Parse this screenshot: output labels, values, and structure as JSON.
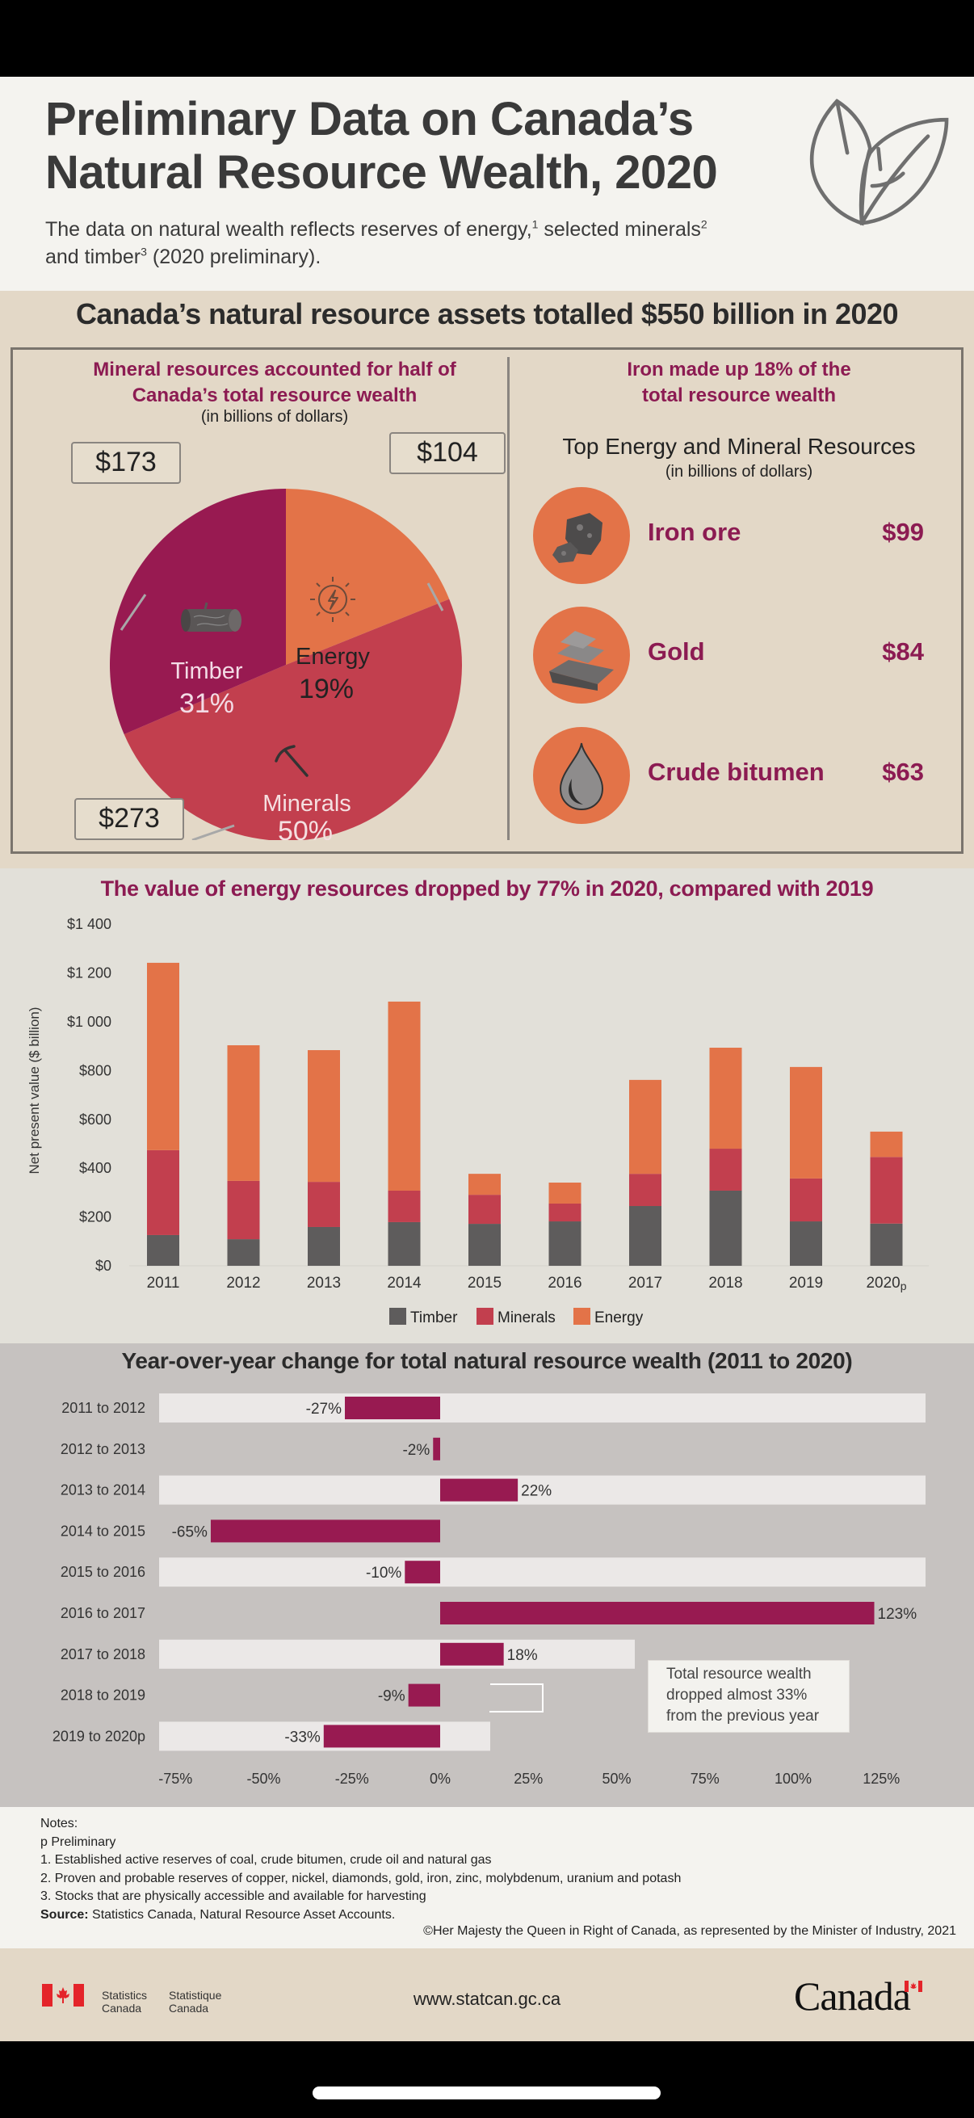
{
  "header": {
    "title_line1": "Preliminary Data on Canada’s",
    "title_line2": "Natural Resource Wealth, 2020",
    "subtitle_part1": "The data on natural wealth reflects reserves of energy,",
    "subtitle_sup1": "1",
    "subtitle_part2": " selected minerals",
    "subtitle_sup2": "2",
    "subtitle_part3": " and timber",
    "subtitle_sup3": "3",
    "subtitle_part4": " (2020 preliminary).",
    "icon": "leaves-icon"
  },
  "assets": {
    "heading": "Canada’s natural resource assets totalled $550 billion in 2020",
    "pie_heading_line1": "Mineral resources accounted for half of",
    "pie_heading_line2": "Canada’s total resource wealth",
    "pie_sub": "(in billions of dollars)",
    "top_heading_line1": "Iron made up 18% of the",
    "top_heading_line2": "total resource wealth",
    "top_title": "Top Energy and Mineral Resources",
    "top_sub": "(in billions of dollars)",
    "top_resources": [
      {
        "name": "Iron ore",
        "value": "$99",
        "icon": "iron-ore-icon"
      },
      {
        "name": "Gold",
        "value": "$84",
        "icon": "gold-bars-icon"
      },
      {
        "name": "Crude bitumen",
        "value": "$63",
        "icon": "oil-drop-icon"
      }
    ]
  },
  "colors": {
    "timber": "#981a51",
    "minerals": "#c23f4e",
    "energy": "#e37348",
    "timber_bar": "#5e5c5c",
    "accent": "#8c1b52"
  },
  "chart_data": [
    {
      "type": "pie",
      "title": "Mineral resources accounted for half of Canada’s total resource wealth",
      "subtitle": "(in billions of dollars)",
      "slices": [
        {
          "label": "Energy",
          "percent": "19%",
          "value": 104,
          "value_label": "$104",
          "icon": "energy-icon"
        },
        {
          "label": "Minerals",
          "percent": "50%",
          "value": 273,
          "value_label": "$273",
          "icon": "pickaxe-icon"
        },
        {
          "label": "Timber",
          "percent": "31%",
          "value": 173,
          "value_label": "$173",
          "icon": "log-icon"
        }
      ]
    },
    {
      "type": "bar",
      "stacked": true,
      "title": "The value of energy resources dropped by 77% in 2020, compared with 2019",
      "xlabel": "",
      "ylabel": "Net present value ($ billion)",
      "ylim": [
        0,
        1400
      ],
      "yticks": [
        0,
        200,
        400,
        600,
        800,
        1000,
        1200,
        1400
      ],
      "ytick_labels": [
        "$0",
        "$200",
        "$400",
        "$600",
        "$800",
        "$1 000",
        "$1 200",
        "$1 400"
      ],
      "categories": [
        "2011",
        "2012",
        "2013",
        "2014",
        "2015",
        "2016",
        "2017",
        "2018",
        "2019",
        "2020"
      ],
      "category_suffix": [
        "",
        "",
        "",
        "",
        "",
        "",
        "",
        "",
        "",
        "p"
      ],
      "legend": "bottom",
      "series": [
        {
          "name": "Timber",
          "values": [
            126,
            109,
            159,
            179,
            172,
            182,
            245,
            308,
            182,
            173
          ]
        },
        {
          "name": "Minerals",
          "values": [
            348,
            239,
            185,
            129,
            119,
            73,
            132,
            172,
            176,
            273
          ]
        },
        {
          "name": "Energy",
          "values": [
            768,
            556,
            540,
            775,
            86,
            86,
            385,
            414,
            457,
            104
          ]
        }
      ]
    },
    {
      "type": "bar",
      "orientation": "horizontal",
      "title": "Year-over-year change for total natural resource wealth (2011 to 2020)",
      "xlim": [
        -75,
        125
      ],
      "xticks": [
        -75,
        -50,
        -25,
        0,
        25,
        50,
        75,
        100,
        125
      ],
      "xtick_labels": [
        "-75%",
        "-50%",
        "-25%",
        "0%",
        "25%",
        "50%",
        "75%",
        "100%",
        "125%"
      ],
      "categories": [
        "2011 to 2012",
        "2012 to 2013",
        "2013 to 2014",
        "2014 to 2015",
        "2015 to 2016",
        "2016 to 2017",
        "2017 to 2018",
        "2018 to 2019",
        "2019 to 2020p"
      ],
      "values": [
        -27,
        -2,
        22,
        -65,
        -10,
        123,
        18,
        -9,
        -33
      ],
      "value_labels": [
        "-27%",
        "-2%",
        "22%",
        "-65%",
        "-10%",
        "123%",
        "18%",
        "-9%",
        "-33%"
      ],
      "annotation": "Total resource wealth dropped almost 33% from the previous year"
    }
  ],
  "yoy_callout": {
    "line1": "Total resource wealth",
    "line2": "dropped almost 33%",
    "line3": "from the previous year"
  },
  "notes": {
    "heading": "Notes:",
    "lines": [
      "p Preliminary",
      "1. Established active reserves of coal, crude bitumen, crude oil and natural gas",
      "2. Proven and probable reserves of copper, nickel, diamonds, gold, iron, zinc, molybdenum, uranium and potash",
      "3. Stocks that are physically accessible and available for harvesting"
    ],
    "source_label": "Source:",
    "source_text": " Statistics Canada, Natural Resource Asset Accounts.",
    "copyright": "©Her Majesty the Queen in Right of Canada, as represented by the Minister of Industry, 2021"
  },
  "footer": {
    "agency_en_line1": "Statistics",
    "agency_en_line2": "Canada",
    "agency_fr_line1": "Statistique",
    "agency_fr_line2": "Canada",
    "website": "www.statcan.gc.ca",
    "wordmark": "Canada"
  }
}
